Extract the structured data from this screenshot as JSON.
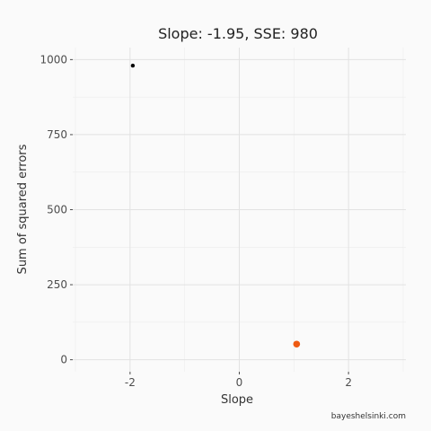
{
  "chart_data": {
    "type": "scatter",
    "title": "Slope: -1.95, SSE: 980",
    "xlabel": "Slope",
    "ylabel": "Sum of squared errors",
    "xlim": [
      -3.05,
      3.05
    ],
    "ylim": [
      -40,
      1040
    ],
    "x_ticks": [
      -2,
      0,
      2
    ],
    "x_tick_labels": [
      "-2",
      "0",
      "2"
    ],
    "y_ticks": [
      0,
      250,
      500,
      750,
      1000
    ],
    "y_tick_labels": [
      "0",
      "250",
      "500",
      "750",
      "1000"
    ],
    "grid": true,
    "legend": "none",
    "series": [
      {
        "points": [
          {
            "x": -1.95,
            "y": 980
          }
        ],
        "color": "#000000"
      },
      {
        "points": [
          {
            "x": 1.05,
            "y": 52
          }
        ],
        "color": "#ee5a12"
      }
    ],
    "caption": "bayeshelsinki.com"
  }
}
